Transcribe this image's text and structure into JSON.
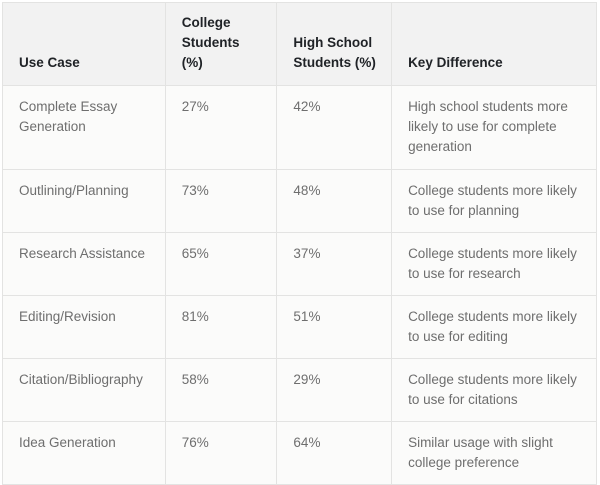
{
  "table": {
    "columns": [
      {
        "label": "Use Case"
      },
      {
        "label": "College Students (%)"
      },
      {
        "label": "High School Students (%)"
      },
      {
        "label": "Key Difference"
      }
    ],
    "rows": [
      {
        "use_case": "Complete Essay Generation",
        "college": "27%",
        "high_school": "42%",
        "key_difference": "High school students more likely to use for complete generation"
      },
      {
        "use_case": "Outlining/Planning",
        "college": "73%",
        "high_school": "48%",
        "key_difference": "College students more likely to use for planning"
      },
      {
        "use_case": "Research Assistance",
        "college": "65%",
        "high_school": "37%",
        "key_difference": "College students more likely to use for research"
      },
      {
        "use_case": "Editing/Revision",
        "college": "81%",
        "high_school": "51%",
        "key_difference": "College students more likely to use for editing"
      },
      {
        "use_case": "Citation/Bibliography",
        "college": "58%",
        "high_school": "29%",
        "key_difference": "College students more likely to use for citations"
      },
      {
        "use_case": "Idea Generation",
        "college": "76%",
        "high_school": "64%",
        "key_difference": "Similar usage with slight college preference"
      }
    ]
  },
  "colors": {
    "header_background": "#f2f2f2",
    "body_background": "#fbfbfa",
    "border": "#e3e3e2",
    "header_text": "#202327",
    "body_text": "#6e6e6e"
  }
}
